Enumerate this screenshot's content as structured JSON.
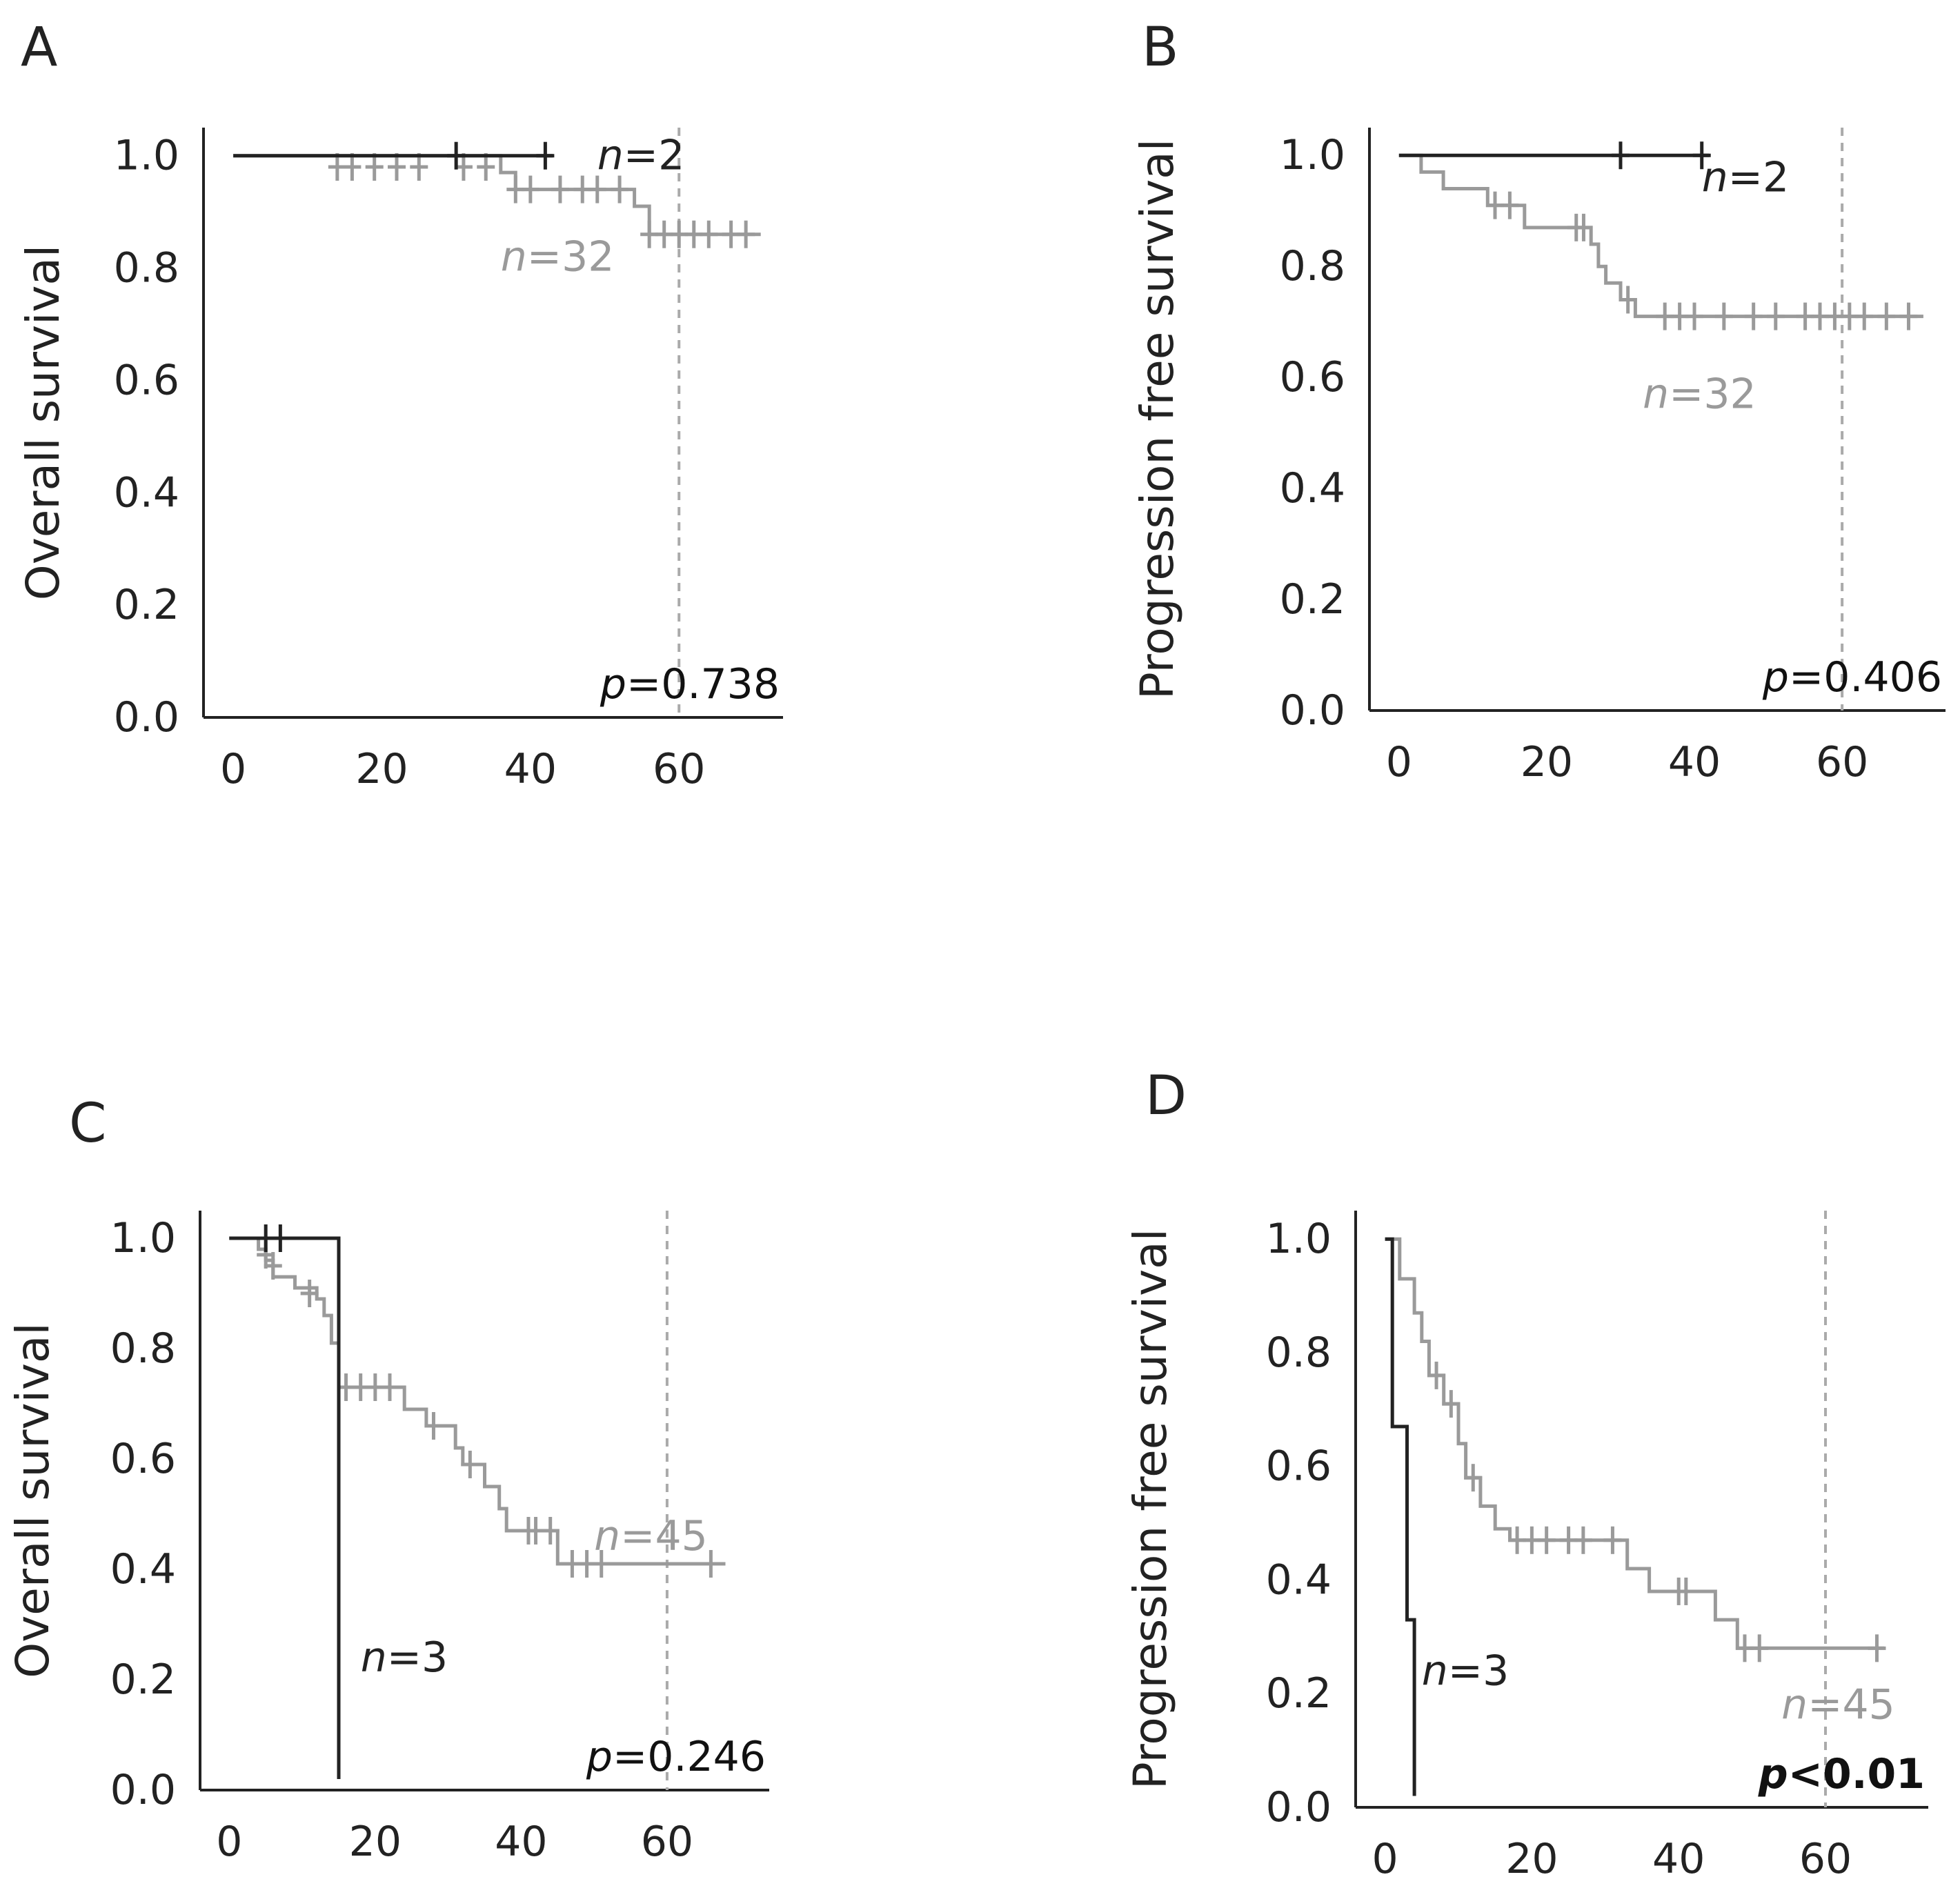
{
  "colors": {
    "black_series": "#222222",
    "gray_series": "#9a9a9a",
    "axis": "#222222",
    "ref_line": "#aaaaaa"
  },
  "chart_data": [
    {
      "panel": "A",
      "type": "line",
      "subtype": "kaplan-meier",
      "ylabel": "Overall survival",
      "xlabel": "",
      "xlim": [
        -4,
        74
      ],
      "ylim": [
        0,
        1.05
      ],
      "xticks": [
        0,
        20,
        40,
        60
      ],
      "xtick_labels": [
        "0",
        "20",
        "40",
        "60"
      ],
      "yticks": [
        0.0,
        0.2,
        0.4,
        0.6,
        0.8,
        1.0
      ],
      "ytick_labels": [
        "0.0",
        "0.2",
        "0.4",
        "0.6",
        "0.8",
        "1.0"
      ],
      "reference_line_x": 60,
      "p_value": {
        "prefix": "p",
        "text": "=0.738",
        "bold": false
      },
      "series": [
        {
          "name": "n=2",
          "label_prefix": "n",
          "label_text": "=2",
          "color": "black",
          "steps": [
            [
              0,
              1.0
            ],
            [
              43,
              1.0
            ]
          ],
          "censors": [
            [
              30,
              1.0
            ],
            [
              42,
              1.0
            ]
          ],
          "label_anchor": [
            49,
            1.0
          ]
        },
        {
          "name": "n=32",
          "label_prefix": "n",
          "label_text": "=32",
          "color": "gray",
          "steps": [
            [
              0,
              1.0
            ],
            [
              36,
              1.0
            ],
            [
              36,
              0.97
            ],
            [
              38,
              0.97
            ],
            [
              38,
              0.94
            ],
            [
              54,
              0.94
            ],
            [
              54,
              0.91
            ],
            [
              56,
              0.91
            ],
            [
              56,
              0.86
            ],
            [
              71,
              0.86
            ]
          ],
          "censors": [
            [
              14,
              0.98
            ],
            [
              16,
              0.98
            ],
            [
              19,
              0.98
            ],
            [
              22,
              0.98
            ],
            [
              25,
              0.98
            ],
            [
              31,
              0.98
            ],
            [
              34,
              0.98
            ],
            [
              38,
              0.94
            ],
            [
              40,
              0.94
            ],
            [
              44,
              0.94
            ],
            [
              47,
              0.94
            ],
            [
              49,
              0.94
            ],
            [
              52,
              0.94
            ],
            [
              56,
              0.86
            ],
            [
              58,
              0.86
            ],
            [
              60,
              0.86
            ],
            [
              62,
              0.86
            ],
            [
              64,
              0.86
            ],
            [
              67,
              0.86
            ],
            [
              69,
              0.86
            ]
          ],
          "label_anchor": [
            36,
            0.82
          ]
        }
      ]
    },
    {
      "panel": "B",
      "type": "line",
      "subtype": "kaplan-meier",
      "ylabel": "Progression free survival",
      "xlabel": "",
      "xlim": [
        -4,
        74
      ],
      "ylim": [
        0,
        1.05
      ],
      "xticks": [
        0,
        20,
        40,
        60
      ],
      "xtick_labels": [
        "0",
        "20",
        "40",
        "60"
      ],
      "yticks": [
        0.0,
        0.2,
        0.4,
        0.6,
        0.8,
        1.0
      ],
      "ytick_labels": [
        "0.0",
        "0.2",
        "0.4",
        "0.6",
        "0.8",
        "1.0"
      ],
      "reference_line_x": 60,
      "p_value": {
        "prefix": "p",
        "text": "=0.406",
        "bold": false
      },
      "series": [
        {
          "name": "n=2",
          "label_prefix": "n",
          "label_text": "=2",
          "color": "black",
          "steps": [
            [
              0,
              1.0
            ],
            [
              42,
              1.0
            ]
          ],
          "censors": [
            [
              30,
              1.0
            ],
            [
              41,
              1.0
            ]
          ],
          "label_anchor": [
            41,
            0.96
          ]
        },
        {
          "name": "n=32",
          "label_prefix": "n",
          "label_text": "=32",
          "color": "gray",
          "steps": [
            [
              0,
              1.0
            ],
            [
              3,
              1.0
            ],
            [
              3,
              0.97
            ],
            [
              6,
              0.97
            ],
            [
              6,
              0.94
            ],
            [
              12,
              0.94
            ],
            [
              12,
              0.91
            ],
            [
              17,
              0.91
            ],
            [
              17,
              0.87
            ],
            [
              26,
              0.87
            ],
            [
              26,
              0.84
            ],
            [
              27,
              0.84
            ],
            [
              27,
              0.8
            ],
            [
              28,
              0.8
            ],
            [
              28,
              0.77
            ],
            [
              30,
              0.77
            ],
            [
              30,
              0.74
            ],
            [
              32,
              0.74
            ],
            [
              32,
              0.71
            ],
            [
              71,
              0.71
            ]
          ],
          "censors": [
            [
              13,
              0.91
            ],
            [
              15,
              0.91
            ],
            [
              24,
              0.87
            ],
            [
              25,
              0.87
            ],
            [
              31,
              0.74
            ],
            [
              36,
              0.71
            ],
            [
              38,
              0.71
            ],
            [
              40,
              0.71
            ],
            [
              44,
              0.71
            ],
            [
              48,
              0.71
            ],
            [
              51,
              0.71
            ],
            [
              55,
              0.71
            ],
            [
              57,
              0.71
            ],
            [
              59,
              0.71
            ],
            [
              61,
              0.71
            ],
            [
              63,
              0.71
            ],
            [
              66,
              0.71
            ],
            [
              69,
              0.71
            ]
          ],
          "label_anchor": [
            33,
            0.57
          ]
        }
      ]
    },
    {
      "panel": "C",
      "type": "line",
      "subtype": "kaplan-meier",
      "ylabel": "Overall survival",
      "xlabel": "",
      "xlim": [
        -4,
        74
      ],
      "ylim": [
        0,
        1.05
      ],
      "xticks": [
        0,
        20,
        40,
        60
      ],
      "xtick_labels": [
        "0",
        "20",
        "40",
        "60"
      ],
      "yticks": [
        0.0,
        0.2,
        0.4,
        0.6,
        0.8,
        1.0
      ],
      "ytick_labels": [
        "0.0",
        "0.2",
        "0.4",
        "0.6",
        "0.8",
        "1.0"
      ],
      "reference_line_x": 60,
      "p_value": {
        "prefix": "p",
        "text": "=0.246",
        "bold": false
      },
      "series": [
        {
          "name": "n=3",
          "label_prefix": "n",
          "label_text": "=3",
          "color": "black",
          "steps": [
            [
              0,
              1.0
            ],
            [
              15,
              1.0
            ],
            [
              15,
              0.02
            ]
          ],
          "censors": [
            [
              5,
              1.0
            ],
            [
              7,
              1.0
            ]
          ],
          "label_anchor": [
            18,
            0.24
          ]
        },
        {
          "name": "n=45",
          "label_prefix": "n",
          "label_text": "=45",
          "color": "gray",
          "steps": [
            [
              0,
              1.0
            ],
            [
              4,
              1.0
            ],
            [
              4,
              0.98
            ],
            [
              5,
              0.98
            ],
            [
              5,
              0.96
            ],
            [
              6,
              0.96
            ],
            [
              6,
              0.93
            ],
            [
              9,
              0.93
            ],
            [
              9,
              0.91
            ],
            [
              12,
              0.91
            ],
            [
              12,
              0.89
            ],
            [
              13,
              0.89
            ],
            [
              13,
              0.86
            ],
            [
              14,
              0.86
            ],
            [
              14,
              0.81
            ],
            [
              15,
              0.81
            ],
            [
              15,
              0.73
            ],
            [
              24,
              0.73
            ],
            [
              24,
              0.69
            ],
            [
              27,
              0.69
            ],
            [
              27,
              0.66
            ],
            [
              31,
              0.66
            ],
            [
              31,
              0.62
            ],
            [
              32,
              0.62
            ],
            [
              32,
              0.59
            ],
            [
              35,
              0.59
            ],
            [
              35,
              0.55
            ],
            [
              37,
              0.55
            ],
            [
              37,
              0.51
            ],
            [
              38,
              0.51
            ],
            [
              38,
              0.47
            ],
            [
              45,
              0.47
            ],
            [
              45,
              0.41
            ],
            [
              68,
              0.41
            ]
          ],
          "censors": [
            [
              5,
              0.97
            ],
            [
              6,
              0.95
            ],
            [
              11,
              0.9
            ],
            [
              16,
              0.73
            ],
            [
              18,
              0.73
            ],
            [
              20,
              0.73
            ],
            [
              22,
              0.73
            ],
            [
              28,
              0.66
            ],
            [
              33,
              0.59
            ],
            [
              41,
              0.47
            ],
            [
              42,
              0.47
            ],
            [
              44,
              0.47
            ],
            [
              47,
              0.41
            ],
            [
              49,
              0.41
            ],
            [
              51,
              0.41
            ],
            [
              66,
              0.41
            ]
          ],
          "label_anchor": [
            50,
            0.46
          ]
        }
      ]
    },
    {
      "panel": "D",
      "type": "line",
      "subtype": "kaplan-meier",
      "ylabel": "Progression free survival",
      "xlabel": "",
      "xlim": [
        -4,
        74
      ],
      "ylim": [
        0,
        1.05
      ],
      "xticks": [
        0,
        20,
        40,
        60
      ],
      "xtick_labels": [
        "0",
        "20",
        "40",
        "60"
      ],
      "yticks": [
        0.0,
        0.2,
        0.4,
        0.6,
        0.8,
        1.0
      ],
      "ytick_labels": [
        "0.0",
        "0.2",
        "0.4",
        "0.6",
        "0.8",
        "1.0"
      ],
      "reference_line_x": 60,
      "p_value": {
        "prefix": "p",
        "text": "<0.01",
        "bold": true
      },
      "series": [
        {
          "name": "n=3",
          "label_prefix": "n",
          "label_text": "=3",
          "color": "black",
          "steps": [
            [
              0,
              1.0
            ],
            [
              1,
              1.0
            ],
            [
              1,
              0.67
            ],
            [
              3,
              0.67
            ],
            [
              3,
              0.33
            ],
            [
              4,
              0.33
            ],
            [
              4,
              0.02
            ]
          ],
          "censors": [],
          "label_anchor": [
            5,
            0.24
          ]
        },
        {
          "name": "n=45",
          "label_prefix": "n",
          "label_text": "=45",
          "color": "gray",
          "steps": [
            [
              0,
              1.0
            ],
            [
              2,
              1.0
            ],
            [
              2,
              0.93
            ],
            [
              4,
              0.93
            ],
            [
              4,
              0.87
            ],
            [
              5,
              0.87
            ],
            [
              5,
              0.82
            ],
            [
              6,
              0.82
            ],
            [
              6,
              0.76
            ],
            [
              8,
              0.76
            ],
            [
              8,
              0.71
            ],
            [
              10,
              0.71
            ],
            [
              10,
              0.64
            ],
            [
              11,
              0.64
            ],
            [
              11,
              0.58
            ],
            [
              13,
              0.58
            ],
            [
              13,
              0.53
            ],
            [
              15,
              0.53
            ],
            [
              15,
              0.49
            ],
            [
              17,
              0.49
            ],
            [
              17,
              0.47
            ],
            [
              33,
              0.47
            ],
            [
              33,
              0.42
            ],
            [
              36,
              0.42
            ],
            [
              36,
              0.38
            ],
            [
              45,
              0.38
            ],
            [
              45,
              0.33
            ],
            [
              48,
              0.33
            ],
            [
              48,
              0.28
            ],
            [
              68,
              0.28
            ]
          ],
          "censors": [
            [
              7,
              0.76
            ],
            [
              9,
              0.71
            ],
            [
              12,
              0.58
            ],
            [
              18,
              0.47
            ],
            [
              20,
              0.47
            ],
            [
              22,
              0.47
            ],
            [
              25,
              0.47
            ],
            [
              27,
              0.47
            ],
            [
              31,
              0.47
            ],
            [
              40,
              0.38
            ],
            [
              41,
              0.38
            ],
            [
              49,
              0.28
            ],
            [
              51,
              0.28
            ],
            [
              67,
              0.28
            ]
          ],
          "label_anchor": [
            54,
            0.18
          ]
        }
      ]
    }
  ]
}
